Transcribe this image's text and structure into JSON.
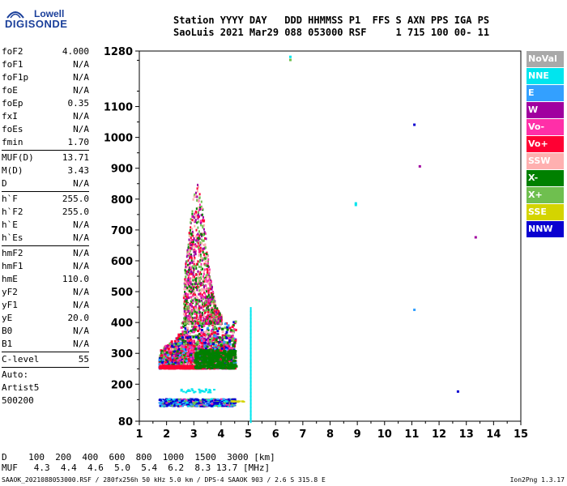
{
  "logo": {
    "line1": "Lowell",
    "line2": "DIGISONDE"
  },
  "header": {
    "line1": "Station YYYY DAY   DDD HHMMSS P1  FFS S AXN PPS IGA PS",
    "line2": "SaoLuis 2021 Mar29 088 053000 RSF     1 715 100 00- 11"
  },
  "params": [
    [
      {
        "label": "foF2",
        "value": "4.000"
      },
      {
        "label": "foF1",
        "value": "N/A"
      },
      {
        "label": "foF1p",
        "value": "N/A"
      },
      {
        "label": "foE",
        "value": "N/A"
      },
      {
        "label": "foEp",
        "value": "0.35"
      },
      {
        "label": "fxI",
        "value": "N/A"
      },
      {
        "label": "foEs",
        "value": "N/A"
      },
      {
        "label": "fmin",
        "value": "1.70"
      }
    ],
    [
      {
        "label": "MUF(D)",
        "value": "13.71"
      },
      {
        "label": "M(D)",
        "value": "3.43"
      },
      {
        "label": "D",
        "value": "N/A"
      }
    ],
    [
      {
        "label": "h`F",
        "value": "255.0"
      },
      {
        "label": "h`F2",
        "value": "255.0"
      },
      {
        "label": "h`E",
        "value": "N/A"
      },
      {
        "label": "h`Es",
        "value": "N/A"
      }
    ],
    [
      {
        "label": "hmF2",
        "value": "N/A"
      },
      {
        "label": "hmF1",
        "value": "N/A"
      },
      {
        "label": "hmE",
        "value": "110.0"
      },
      {
        "label": "yF2",
        "value": "N/A"
      },
      {
        "label": "yF1",
        "value": "N/A"
      },
      {
        "label": "yE",
        "value": "20.0"
      },
      {
        "label": "B0",
        "value": "N/A"
      },
      {
        "label": "B1",
        "value": "N/A"
      }
    ],
    [
      {
        "label": "C-level",
        "value": "55"
      }
    ]
  ],
  "auto": {
    "line1": "Auto:",
    "line2": "Artist5",
    "line3": "500200"
  },
  "legend": [
    {
      "label": "NoVal",
      "color": "#a9a9a9"
    },
    {
      "label": "NNE",
      "color": "#00e5ee"
    },
    {
      "label": "E",
      "color": "#33a0ff"
    },
    {
      "label": "W",
      "color": "#a0009f"
    },
    {
      "label": "Vo-",
      "color": "#ff2fa8"
    },
    {
      "label": "Vo+",
      "color": "#ff0033"
    },
    {
      "label": "SSW",
      "color": "#ffb0b0"
    },
    {
      "label": "X-",
      "color": "#008000"
    },
    {
      "label": "X+",
      "color": "#6fbf4f"
    },
    {
      "label": "SSE",
      "color": "#d4d400"
    },
    {
      "label": "NNW",
      "color": "#0a00d0"
    }
  ],
  "chart_data": {
    "type": "scatter",
    "xlim": [
      1,
      15
    ],
    "ylim": [
      80,
      1280
    ],
    "x_ticks": [
      "1",
      "2",
      "3",
      "4",
      "5",
      "6",
      "7",
      "8",
      "9",
      "10",
      "11",
      "12",
      "13",
      "14",
      "15"
    ],
    "y_ticks": [
      "80",
      "200",
      "300",
      "400",
      "500",
      "600",
      "700",
      "800",
      "900",
      "1000",
      "1100",
      "1280"
    ],
    "y_tick_values": [
      80,
      200,
      300,
      400,
      500,
      600,
      700,
      800,
      900,
      1000,
      1100,
      1280
    ],
    "regions": [
      {
        "name": "F-trace main",
        "x_range": [
          1.7,
          4.5
        ],
        "y_range": [
          255,
          420
        ],
        "colors": [
          "Vo+",
          "Vo-",
          "X-",
          "X+",
          "W",
          "NNW",
          "E",
          "SSW"
        ]
      },
      {
        "name": "F-spread upward",
        "x_range": [
          2.6,
          4.0
        ],
        "y_range": [
          420,
          850
        ],
        "colors": [
          "Vo+",
          "Vo-",
          "W",
          "X-",
          "X+",
          "SSW"
        ]
      },
      {
        "name": "low trace",
        "x_range": [
          1.7,
          4.5
        ],
        "y_range": [
          125,
          165
        ],
        "colors": [
          "NNW",
          "E",
          "NNE",
          "X+",
          "Vo-"
        ]
      },
      {
        "name": "spread 5 MHz",
        "x_range": [
          5.05,
          5.1
        ],
        "y_range": [
          90,
          460
        ],
        "colors": [
          "NNE"
        ]
      }
    ],
    "isolated_points": [
      {
        "x": 6.5,
        "y": 1265,
        "c": "NNE"
      },
      {
        "x": 6.5,
        "y": 1255,
        "c": "X+"
      },
      {
        "x": 8.9,
        "y": 790,
        "c": "NNE"
      },
      {
        "x": 8.9,
        "y": 785,
        "c": "NNE"
      },
      {
        "x": 11.05,
        "y": 1045,
        "c": "NNW"
      },
      {
        "x": 11.25,
        "y": 910,
        "c": "W"
      },
      {
        "x": 11.05,
        "y": 445,
        "c": "E"
      },
      {
        "x": 13.3,
        "y": 680,
        "c": "W"
      },
      {
        "x": 12.65,
        "y": 180,
        "c": "NNW"
      }
    ]
  },
  "muf_table": {
    "D_label": "D",
    "D_values": [
      "100",
      "200",
      "400",
      "600",
      "800",
      "1000",
      "1500",
      "3000"
    ],
    "D_unit": "[km]",
    "MUF_label": "MUF",
    "MUF_values": [
      "4.3",
      "4.4",
      "4.6",
      "5.0",
      "5.4",
      "6.2",
      "8.3",
      "13.7"
    ],
    "MUF_unit": "[MHz]"
  },
  "footer": {
    "text": "SAAOK_2021088053000.RSF / 280fx256h 50 kHz 5.0 km / DPS-4 SAAOK 903 / 2.6 S 315.8 E",
    "version": "Ion2Png 1.3.17"
  }
}
